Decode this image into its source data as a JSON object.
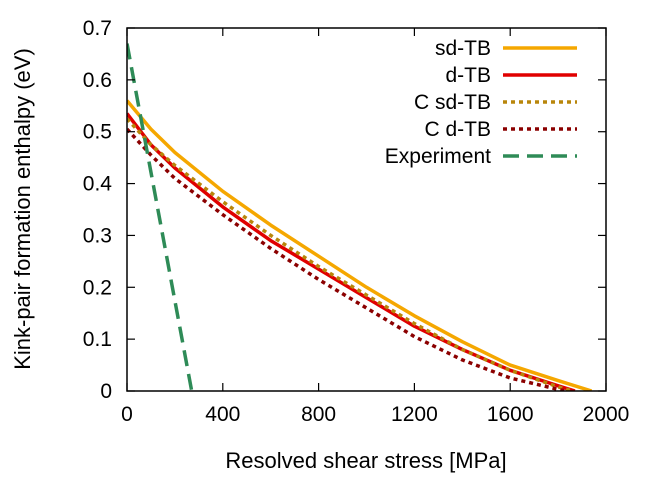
{
  "chart_data": {
    "type": "line",
    "title": "",
    "xlabel": "Resolved shear stress [MPa]",
    "ylabel": "Kink-pair formation enthalpy (eV)",
    "xlim": [
      0,
      2000
    ],
    "ylim": [
      0,
      0.7
    ],
    "xticks": [
      "0",
      "400",
      "800",
      "1200",
      "1600",
      "2000"
    ],
    "yticks": [
      "0",
      "0.1",
      "0.2",
      "0.3",
      "0.4",
      "0.5",
      "0.6",
      "0.7"
    ],
    "grid": false,
    "legend_position": "top-right",
    "series": [
      {
        "name": "sd-TB",
        "color": "#f5a700",
        "style": "solid",
        "x": [
          0,
          100,
          200,
          400,
          600,
          800,
          1000,
          1200,
          1400,
          1600,
          1800,
          1940
        ],
        "y": [
          0.56,
          0.505,
          0.46,
          0.385,
          0.32,
          0.26,
          0.2,
          0.145,
          0.095,
          0.05,
          0.02,
          0
        ]
      },
      {
        "name": "d-TB",
        "color": "#e00000",
        "style": "solid",
        "x": [
          0,
          100,
          200,
          400,
          600,
          800,
          1000,
          1200,
          1400,
          1600,
          1800,
          1870
        ],
        "y": [
          0.535,
          0.475,
          0.43,
          0.355,
          0.29,
          0.235,
          0.18,
          0.125,
          0.08,
          0.04,
          0.01,
          0
        ]
      },
      {
        "name": "C sd-TB",
        "color": "#b8860b",
        "style": "dotted",
        "x": [
          0,
          100,
          200,
          400,
          600,
          800,
          1000,
          1200,
          1400,
          1600,
          1800,
          1860
        ],
        "y": [
          0.525,
          0.475,
          0.435,
          0.365,
          0.3,
          0.24,
          0.185,
          0.13,
          0.08,
          0.04,
          0.008,
          0
        ]
      },
      {
        "name": "C d-TB",
        "color": "#8b0000",
        "style": "dotted",
        "x": [
          0,
          100,
          200,
          400,
          600,
          800,
          1000,
          1200,
          1400,
          1600,
          1800,
          1830
        ],
        "y": [
          0.505,
          0.455,
          0.41,
          0.34,
          0.275,
          0.215,
          0.16,
          0.105,
          0.06,
          0.025,
          0.003,
          0
        ]
      },
      {
        "name": "Experiment",
        "color": "#2e8b57",
        "style": "dashed",
        "x": [
          0,
          270
        ],
        "y": [
          0.67,
          0
        ]
      }
    ]
  }
}
